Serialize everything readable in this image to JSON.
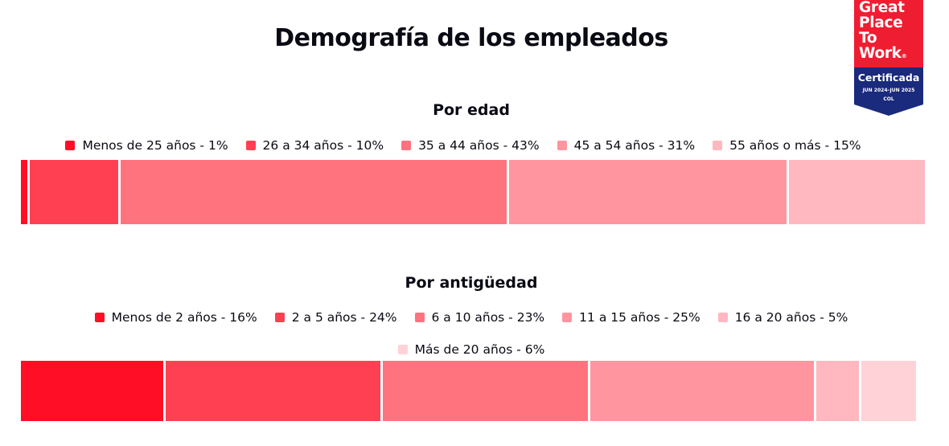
{
  "header": {
    "title": "Demografía de los empleados"
  },
  "badge": {
    "lines": [
      "Great",
      "Place",
      "To",
      "Work"
    ],
    "registered_mark": "®",
    "certification": "Certificada",
    "period": "JUN 2024–JUN 2025",
    "country": "COL",
    "trademark": "™",
    "colors": {
      "top": "#ef1d31",
      "bottom": "#1a2a7c"
    }
  },
  "chart_data": [
    {
      "type": "bar",
      "orientation": "horizontal-stacked-100",
      "title": "Por edad",
      "categories": [
        "Menos de 25 años",
        "26 a 34 años",
        "35 a 44 años",
        "45 a 54 años",
        "55 años o más"
      ],
      "values": [
        1,
        10,
        43,
        31,
        15
      ],
      "unit": "%",
      "legend_labels": [
        "Menos de 25 años - 1%",
        "26 a 34 años - 10%",
        "35 a 44 años - 43%",
        "45 a 54 años - 31%",
        "55 años o más - 15%"
      ],
      "colors": [
        "#ff0e26",
        "#ff4052",
        "#ff737e",
        "#ff959f",
        "#ffb8bf"
      ],
      "legend_position": "top",
      "xlim": [
        0,
        100
      ]
    },
    {
      "type": "bar",
      "orientation": "horizontal-stacked-100",
      "title": "Por antigüedad",
      "categories": [
        "Menos de 2 años",
        "2 a 5 años",
        "6 a 10 años",
        "11 a 15 años",
        "16 a 20 años",
        "Más de 20 años"
      ],
      "values": [
        16,
        24,
        23,
        25,
        5,
        6
      ],
      "unit": "%",
      "legend_labels": [
        "Menos de 2 años - 16%",
        "2 a 5 años - 24%",
        "6 a 10 años - 23%",
        "11 a 15 años - 25%",
        "16 a 20 años - 5%",
        "Más de 20 años - 6%"
      ],
      "colors": [
        "#ff0e26",
        "#ff4052",
        "#ff737e",
        "#ff959f",
        "#ffb8bf",
        "#ffd2d7"
      ],
      "legend_position": "top",
      "xlim": [
        0,
        100
      ]
    }
  ]
}
